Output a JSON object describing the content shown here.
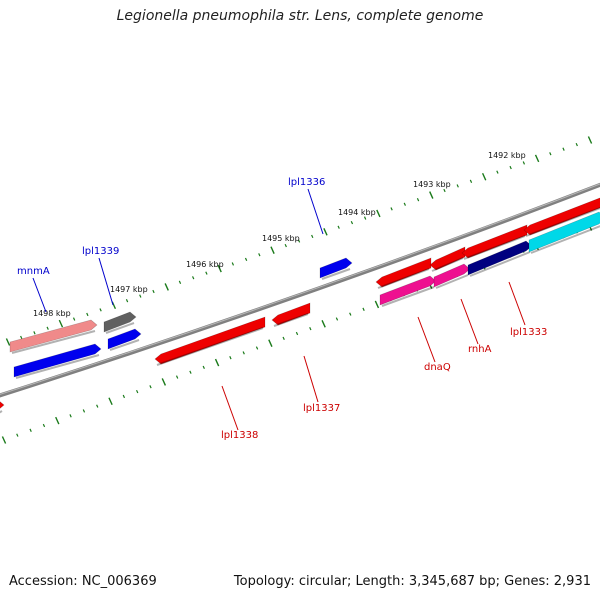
{
  "title": "Legionella pneumophila str. Lens, complete genome",
  "footer": {
    "accession": "Accession: NC_006369",
    "stats": "Topology: circular; Length: 3,345,687 bp; Genes: 2,931"
  },
  "colors": {
    "backbone": "#808080",
    "tick": "#1a7a1a",
    "forward_label": "#0000cc",
    "reverse_label": "#cc0000"
  },
  "ticks": [
    {
      "label": "1498 kbp"
    },
    {
      "label": "1497 kbp"
    },
    {
      "label": "1496 kbp"
    },
    {
      "label": "1495 kbp"
    },
    {
      "label": "1494 kbp"
    },
    {
      "label": "1493 kbp"
    },
    {
      "label": "1492 kbp"
    }
  ],
  "genes": [
    {
      "name": "mnmA",
      "strand": "forward",
      "color": "#f08a8a",
      "style": "cds"
    },
    {
      "name": "",
      "strand": "forward",
      "color": "#0000ee",
      "style": "cds"
    },
    {
      "name": "lpl1339",
      "strand": "forward",
      "color": "#606060",
      "style": "cds"
    },
    {
      "name": "",
      "strand": "forward",
      "color": "#0000ee",
      "style": "cds"
    },
    {
      "name": "lpl1336",
      "strand": "forward",
      "color": "#0000ee",
      "style": "cds"
    },
    {
      "name": "lpl1338",
      "strand": "reverse",
      "color": "#ee0000",
      "style": "cds"
    },
    {
      "name": "lpl1337",
      "strand": "reverse",
      "color": "#ee0000",
      "style": "cds"
    },
    {
      "name": "dnaQ",
      "strand": "reverse",
      "color": "#ee0000",
      "style": "cds"
    },
    {
      "name": "",
      "strand": "reverse",
      "color": "#ee0000",
      "style": "cds"
    },
    {
      "name": "",
      "strand": "reverse",
      "color": "#ee0000",
      "style": "cds"
    },
    {
      "name": "",
      "strand": "reverse",
      "color": "#ee0000",
      "style": "cds"
    },
    {
      "name": "",
      "strand": "reverse",
      "color": "#ee1090",
      "style": "cds"
    },
    {
      "name": "rnhA",
      "strand": "reverse",
      "color": "#ee1090",
      "style": "cds"
    },
    {
      "name": "lpl1333",
      "strand": "reverse",
      "color": "#000080",
      "style": "cds"
    },
    {
      "name": "",
      "strand": "reverse",
      "color": "#00d8e8",
      "style": "cds"
    },
    {
      "name": "",
      "strand": "reverse",
      "color": "#ee0000",
      "style": "cds"
    }
  ]
}
